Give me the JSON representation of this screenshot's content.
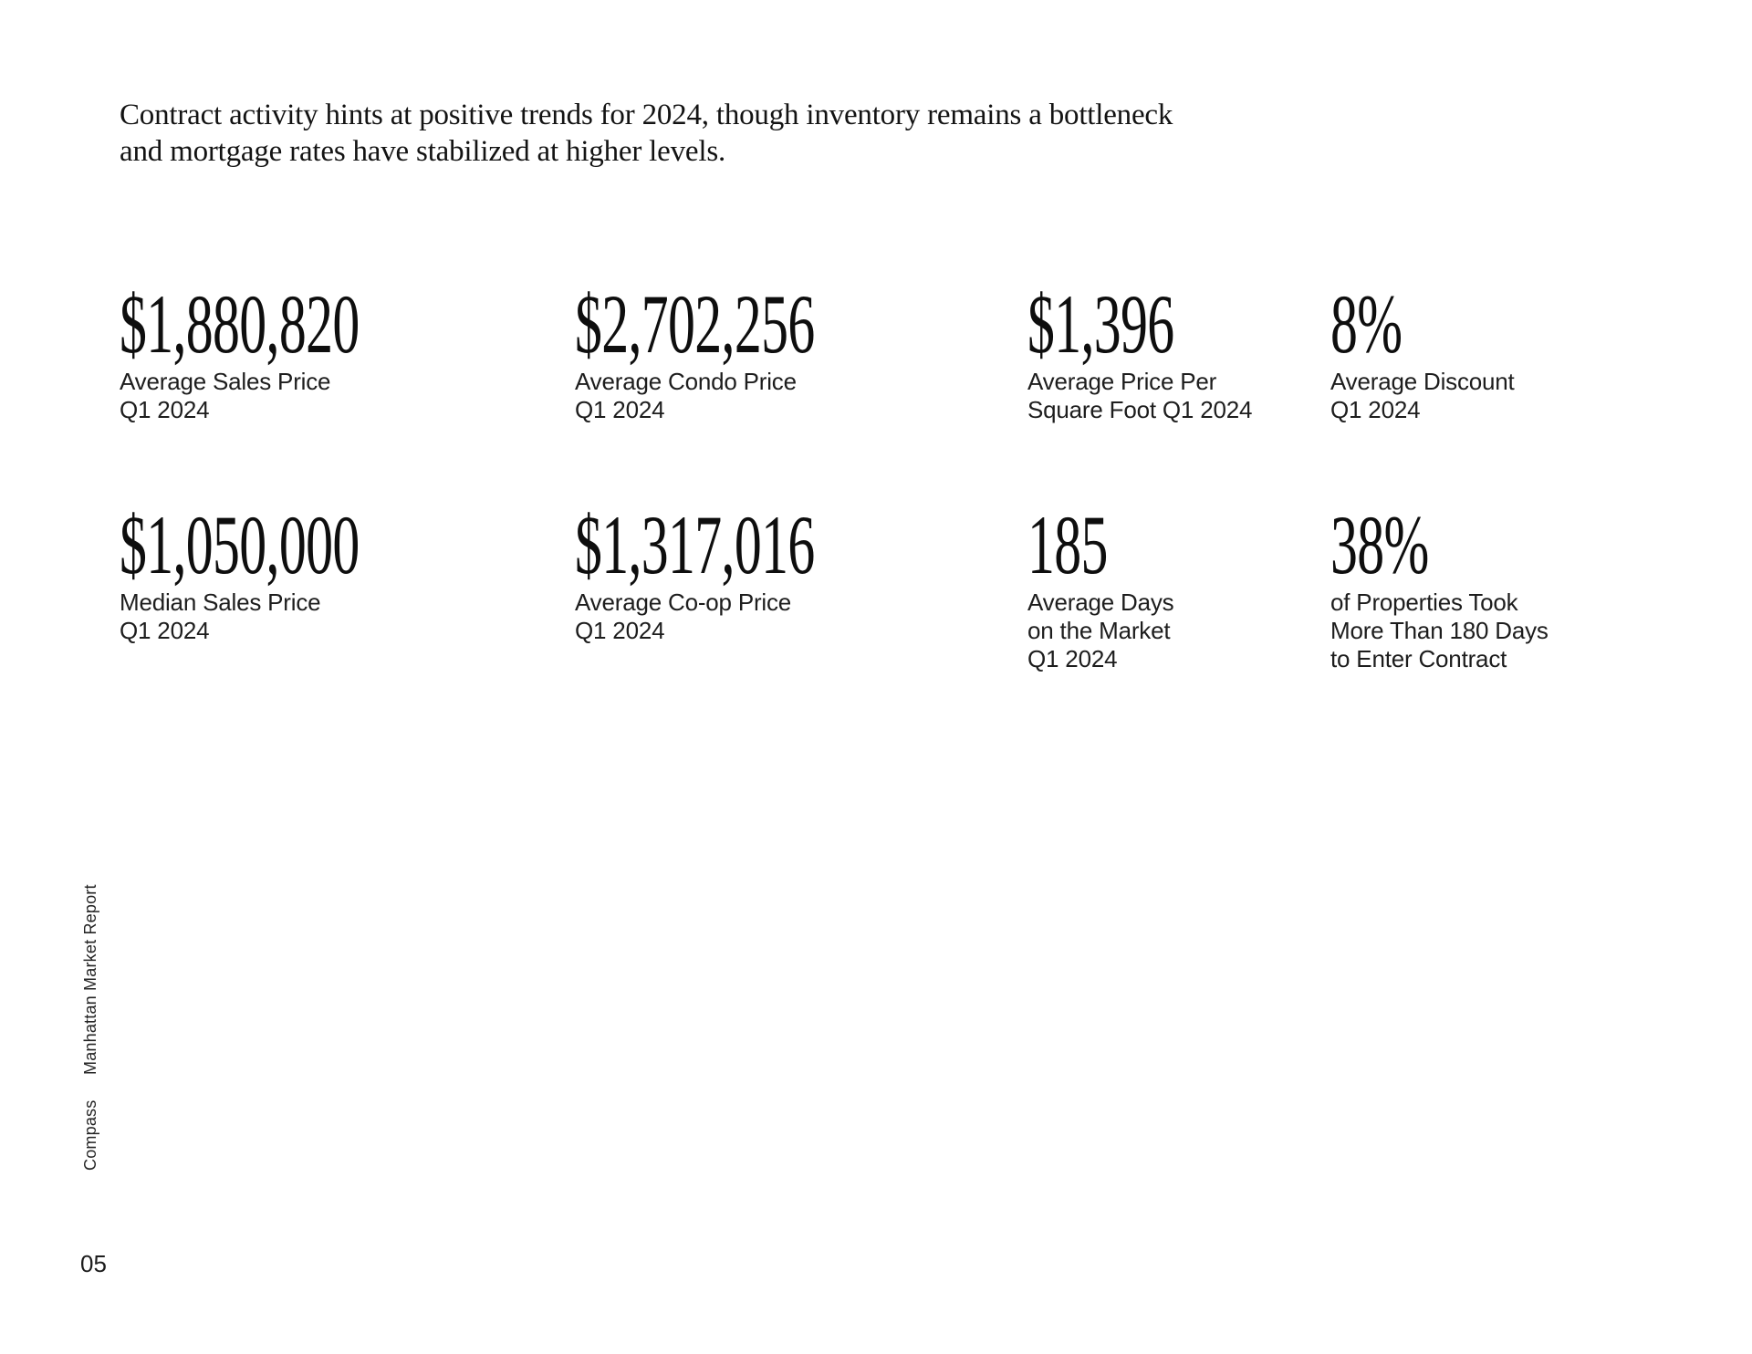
{
  "headline": {
    "line1": "Contract activity hints at positive trends for 2024, though inventory remains a bottleneck",
    "line2": "and mortgage rates have stabilized at higher levels."
  },
  "stats": {
    "rows": [
      [
        {
          "value": "$1,880,820",
          "label_lines": [
            "Average Sales Price",
            "Q1 2024"
          ]
        },
        {
          "value": "$2,702,256",
          "label_lines": [
            "Average Condo Price",
            "Q1 2024"
          ]
        },
        {
          "value": "$1,396",
          "label_lines": [
            "Average Price Per",
            "Square Foot Q1 2024"
          ]
        },
        {
          "value": "8%",
          "label_lines": [
            "Average Discount",
            "Q1 2024"
          ]
        }
      ],
      [
        {
          "value": "$1,050,000",
          "label_lines": [
            "Median Sales Price",
            "Q1 2024"
          ]
        },
        {
          "value": "$1,317,016",
          "label_lines": [
            "Average Co-op Price",
            "Q1 2024"
          ]
        },
        {
          "value": "185",
          "label_lines": [
            "Average Days",
            "on the Market",
            "Q1 2024"
          ]
        },
        {
          "value": "38%",
          "label_lines": [
            "of Properties Took",
            "More Than 180 Days",
            "to Enter Contract"
          ]
        }
      ]
    ]
  },
  "sidebar": {
    "brand": "Compass",
    "report_title": "Manhattan Market Report"
  },
  "footer": {
    "page_number": "05"
  },
  "colors": {
    "background": "#ffffff",
    "text": "#161616"
  }
}
